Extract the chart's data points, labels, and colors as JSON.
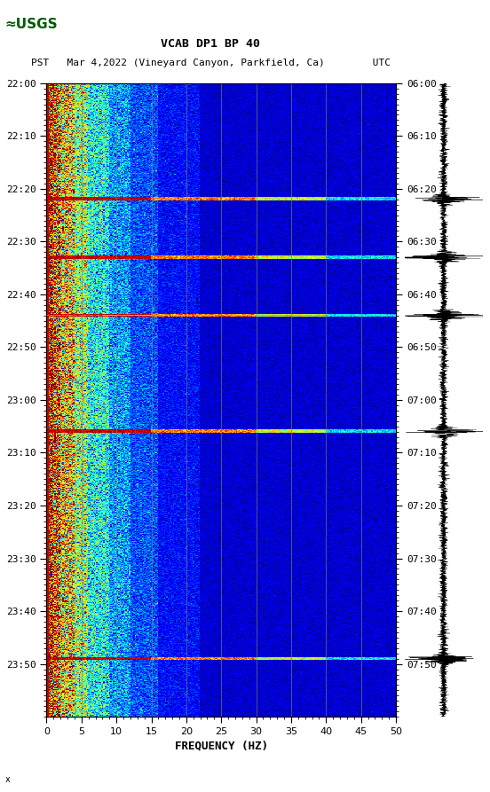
{
  "title_line1": "VCAB DP1 BP 40",
  "title_line2": "PST   Mar 4,2022 (Vineyard Canyon, Parkfield, Ca)        UTC",
  "left_yticks": [
    "22:00",
    "22:10",
    "22:20",
    "22:30",
    "22:40",
    "22:50",
    "23:00",
    "23:10",
    "23:20",
    "23:30",
    "23:40",
    "23:50"
  ],
  "right_yticks": [
    "06:00",
    "06:10",
    "06:20",
    "06:30",
    "06:40",
    "06:50",
    "07:00",
    "07:10",
    "07:20",
    "07:30",
    "07:40",
    "07:50"
  ],
  "xticks": [
    0,
    5,
    10,
    15,
    20,
    25,
    30,
    35,
    40,
    45,
    50
  ],
  "xlabel": "FREQUENCY (HZ)",
  "freq_min": 0,
  "freq_max": 50,
  "n_time": 720,
  "n_freq": 300,
  "colormap": "jet",
  "vertical_line_freqs": [
    5,
    10,
    15,
    20,
    25,
    30,
    35,
    40,
    45
  ],
  "vertical_line_color": "#808060",
  "usgs_green": "#005c00",
  "annotation": "x",
  "event_rows": [
    132,
    198,
    264,
    396,
    654
  ],
  "event_row_thin": [
    264
  ],
  "event_widths": [
    3,
    3,
    2,
    3,
    2
  ]
}
